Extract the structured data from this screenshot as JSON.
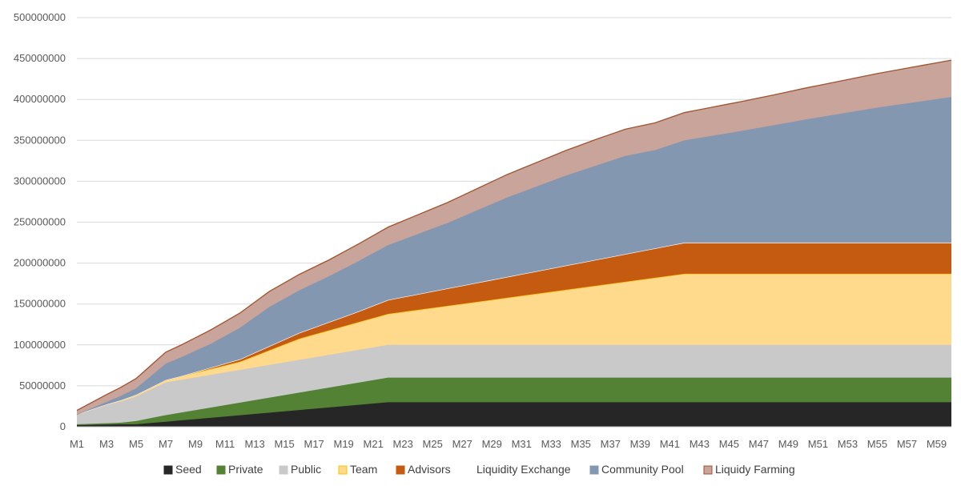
{
  "chart_data": {
    "type": "area",
    "stacked": true,
    "title": "",
    "xlabel": "",
    "ylabel": "",
    "ylim": [
      0,
      500000000
    ],
    "yticks": [
      "0",
      "50000000",
      "100000000",
      "150000000",
      "200000000",
      "250000000",
      "300000000",
      "350000000",
      "400000000",
      "450000000",
      "500000000"
    ],
    "months": 60,
    "xtick_labels": [
      "M1",
      "M3",
      "M5",
      "M7",
      "M9",
      "M11",
      "M13",
      "M15",
      "M17",
      "M19",
      "M21",
      "M23",
      "M25",
      "M27",
      "M29",
      "M31",
      "M33",
      "M35",
      "M37",
      "M39",
      "M41",
      "M43",
      "M45",
      "M47",
      "M49",
      "M51",
      "M53",
      "M55",
      "M57",
      "M59"
    ],
    "grid": true,
    "legend_position": "bottom",
    "series": [
      {
        "name": "Seed",
        "color": "#262626",
        "border": "#262626",
        "keypoints": [
          [
            1,
            2000000
          ],
          [
            4,
            3000000
          ],
          [
            5,
            3000000
          ],
          [
            22,
            30000000
          ],
          [
            60,
            30000000
          ]
        ]
      },
      {
        "name": "Private",
        "color": "#548235",
        "border": "#548235",
        "keypoints": [
          [
            1,
            1000000
          ],
          [
            4,
            2000000
          ],
          [
            7,
            8000000
          ],
          [
            22,
            30000000
          ],
          [
            60,
            30000000
          ]
        ]
      },
      {
        "name": "Public",
        "color": "#C9C9C9",
        "border": "#C9C9C9",
        "keypoints": [
          [
            1,
            12000000
          ],
          [
            2,
            17000000
          ],
          [
            3,
            22000000
          ],
          [
            4,
            26000000
          ],
          [
            5,
            30000000
          ],
          [
            6,
            35000000
          ],
          [
            7,
            40000000
          ],
          [
            8,
            40000000
          ],
          [
            22,
            40000000
          ],
          [
            60,
            40000000
          ]
        ]
      },
      {
        "name": "Team",
        "color": "#FFD98C",
        "border": "#FFC000",
        "keypoints": [
          [
            1,
            0
          ],
          [
            7,
            3000000
          ],
          [
            12,
            10000000
          ],
          [
            16,
            26000000
          ],
          [
            22,
            38000000
          ],
          [
            42,
            87000000
          ],
          [
            60,
            87000000
          ]
        ]
      },
      {
        "name": "Advisors",
        "color": "#C55A11",
        "border": "#C55A11",
        "keypoints": [
          [
            1,
            0
          ],
          [
            8,
            0
          ],
          [
            12,
            3000000
          ],
          [
            16,
            7000000
          ],
          [
            20,
            13000000
          ],
          [
            22,
            17000000
          ],
          [
            42,
            38000000
          ],
          [
            60,
            38000000
          ]
        ]
      },
      {
        "name": "Liquidity Exchange",
        "color": "#FFFFFF",
        "border": "#FFFFFF",
        "keypoints": [
          [
            1,
            0
          ],
          [
            60,
            0
          ]
        ]
      },
      {
        "name": "Community Pool",
        "color": "#8497B0",
        "border": "#8497B0",
        "keypoints": [
          [
            1,
            0
          ],
          [
            3,
            3000000
          ],
          [
            5,
            8000000
          ],
          [
            6,
            14000000
          ],
          [
            7,
            20000000
          ],
          [
            10,
            29000000
          ],
          [
            14,
            48000000
          ],
          [
            18,
            56000000
          ],
          [
            22,
            67000000
          ],
          [
            26,
            80000000
          ],
          [
            30,
            97000000
          ],
          [
            34,
            110000000
          ],
          [
            38,
            120000000
          ],
          [
            40,
            120000000
          ],
          [
            42,
            125000000
          ],
          [
            46,
            137000000
          ],
          [
            50,
            150000000
          ],
          [
            55,
            165000000
          ],
          [
            60,
            178000000
          ]
        ]
      },
      {
        "name": "Liquidy Farming",
        "color": "#C9A49A",
        "border": "#A0522D",
        "keypoints": [
          [
            1,
            5000000
          ],
          [
            3,
            9000000
          ],
          [
            5,
            12000000
          ],
          [
            7,
            14000000
          ],
          [
            10,
            17000000
          ],
          [
            14,
            19000000
          ],
          [
            18,
            20000000
          ],
          [
            22,
            22000000
          ],
          [
            30,
            28000000
          ],
          [
            36,
            32000000
          ],
          [
            42,
            34000000
          ],
          [
            48,
            37000000
          ],
          [
            54,
            41000000
          ],
          [
            60,
            45000000
          ]
        ]
      }
    ]
  }
}
